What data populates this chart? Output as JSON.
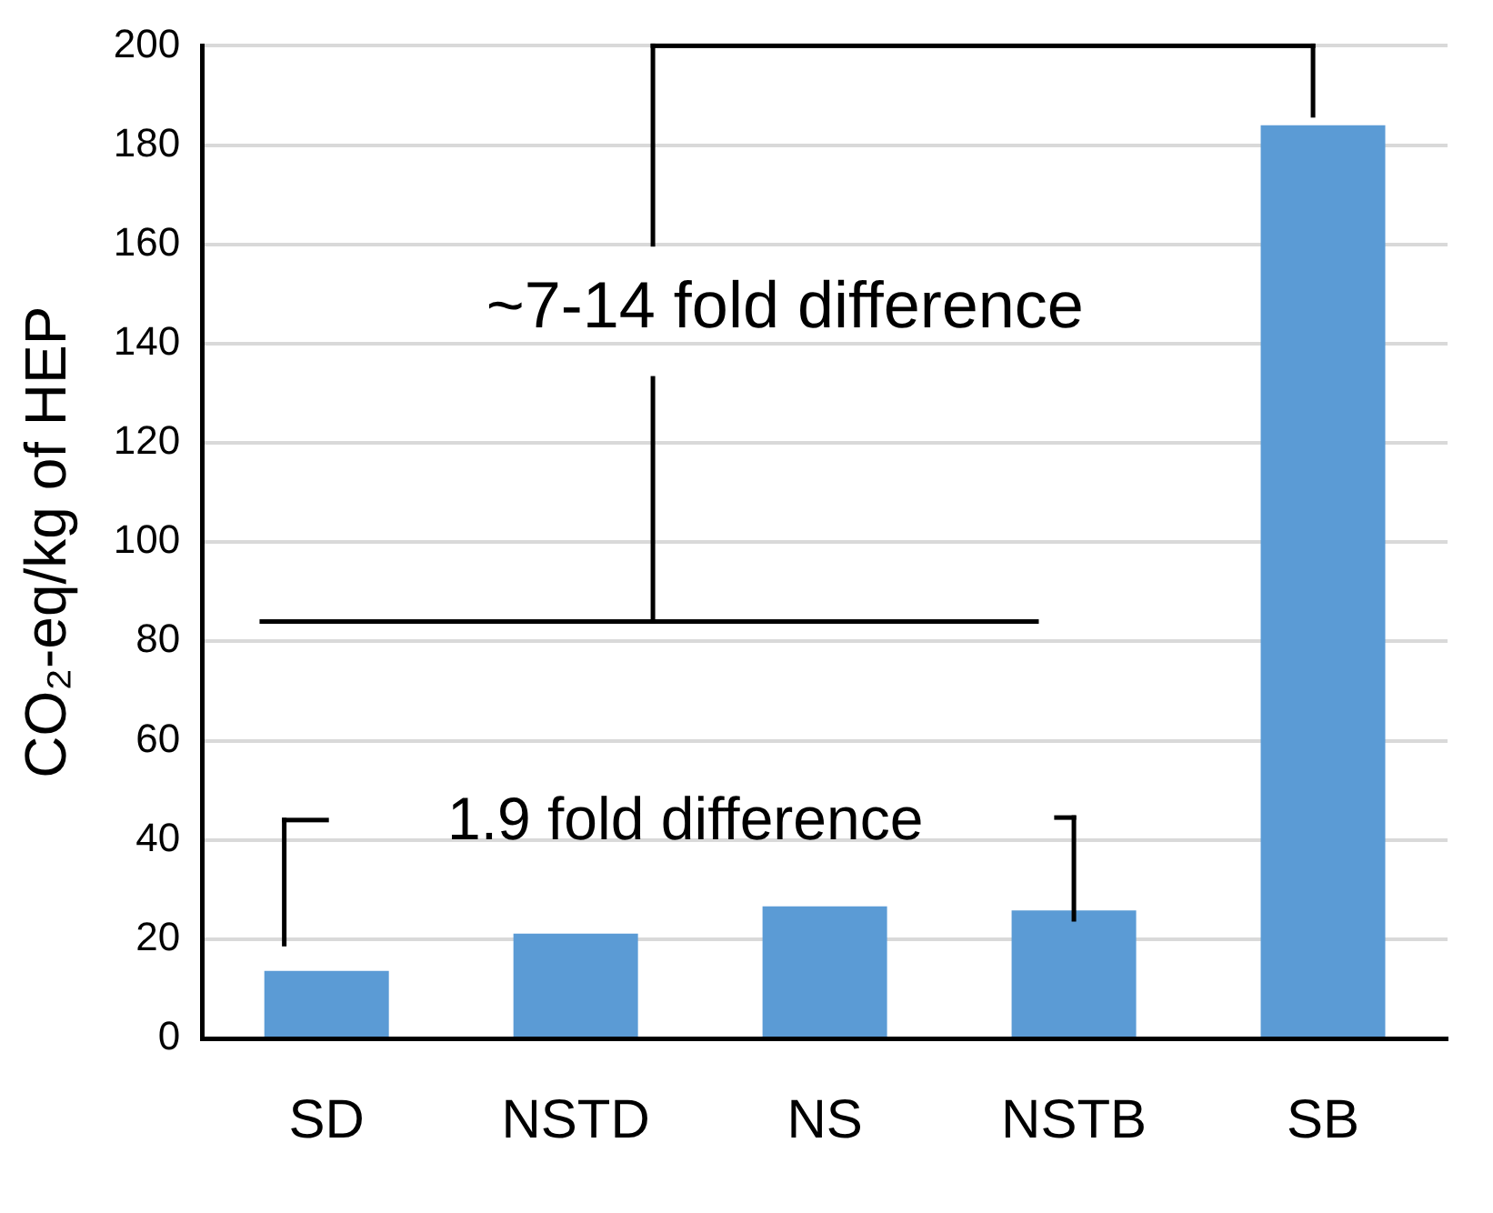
{
  "chart_data": {
    "type": "bar",
    "categories": [
      "SD",
      "NSTD",
      "NS",
      "NSTB",
      "SB"
    ],
    "values": [
      13.6,
      21.1,
      26.6,
      25.8,
      184
    ],
    "color": "#5b9bd5",
    "ylabel": "CO₂-eq/kg of HEP",
    "ylim": [
      0,
      200
    ],
    "yticks": [
      0,
      20,
      40,
      60,
      80,
      100,
      120,
      140,
      160,
      180,
      200
    ],
    "grid": "y",
    "legend": false,
    "annotations": [
      "~7-14 fold difference",
      "1.9 fold difference"
    ]
  }
}
